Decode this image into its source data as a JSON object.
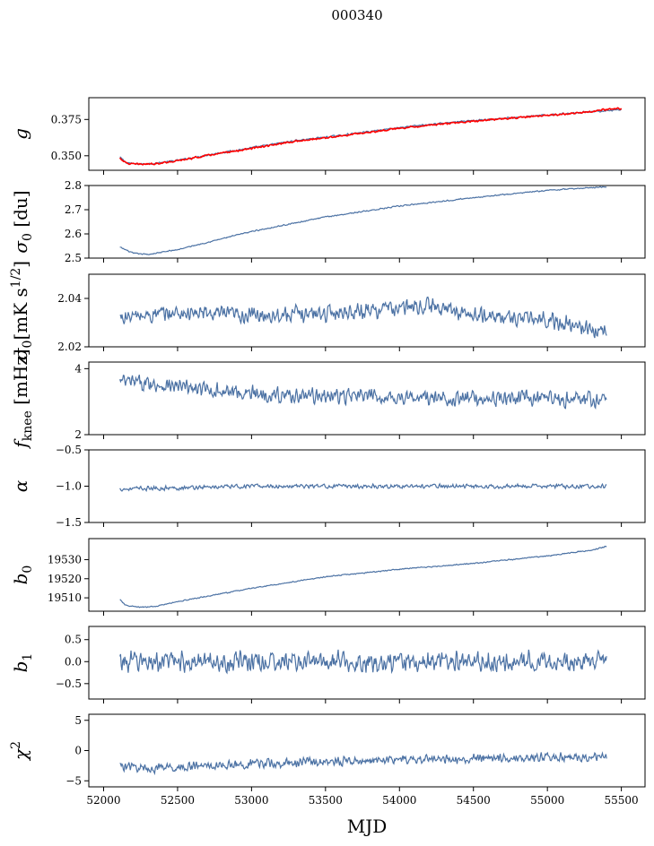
{
  "chart_data": {
    "title": "000340",
    "xlabel": "MJD",
    "xlim": [
      51900,
      55660
    ],
    "xticks": [
      52000,
      52500,
      53000,
      53500,
      54000,
      54500,
      55000,
      55500
    ],
    "xtick_labels": [
      "52000",
      "52500",
      "53000",
      "53500",
      "54000",
      "54500",
      "55000",
      "55500"
    ],
    "line_color": "#4c72a4",
    "red_color": "#ff0000",
    "panels": [
      {
        "type": "line",
        "ylabel": "g",
        "ylim": [
          0.34,
          0.39
        ],
        "yticks": [
          0.35,
          0.375
        ],
        "ytick_labels": [
          "0.350",
          "0.375"
        ],
        "noise": 0.0007,
        "series": [
          {
            "x": [
              52110,
              52150,
              52200,
              52260,
              52350,
              52500,
              52700,
              53000,
              53300,
              53600,
              54000,
              54300,
              54600,
              55000,
              55300,
              55400,
              55500
            ],
            "values": [
              0.349,
              0.3455,
              0.3445,
              0.3443,
              0.3448,
              0.3468,
              0.3505,
              0.3555,
              0.3605,
              0.364,
              0.3695,
              0.3725,
              0.375,
              0.378,
              0.3805,
              0.381,
              0.3815
            ]
          },
          {
            "x": [
              52110,
              52150,
              52200,
              52260,
              52350,
              52500,
              52700,
              53000,
              53300,
              53600,
              54000,
              54300,
              54600,
              55000,
              55300,
              55400,
              55500
            ],
            "values": [
              0.3485,
              0.345,
              0.3442,
              0.3442,
              0.3446,
              0.3465,
              0.3502,
              0.355,
              0.36,
              0.3636,
              0.369,
              0.372,
              0.3747,
              0.3778,
              0.3803,
              0.382,
              0.3825
            ]
          }
        ]
      },
      {
        "type": "line",
        "ylabel": "σ0 [du]",
        "ylim": [
          2.5,
          2.8
        ],
        "yticks": [
          2.5,
          2.6,
          2.7,
          2.8
        ],
        "ytick_labels": [
          "2.5",
          "2.6",
          "2.7",
          "2.8"
        ],
        "noise": 0.003,
        "series": [
          {
            "x": [
              52110,
              52200,
              52300,
              52500,
              53000,
              53500,
              54000,
              54500,
              55000,
              55400
            ],
            "values": [
              2.545,
              2.52,
              2.515,
              2.535,
              2.61,
              2.67,
              2.715,
              2.75,
              2.78,
              2.795
            ]
          }
        ]
      },
      {
        "type": "line",
        "ylabel": "σ0[mK s^1/2]",
        "ylim": [
          2.02,
          2.05
        ],
        "yticks": [
          2.02,
          2.04
        ],
        "ytick_labels": [
          "2.02",
          "2.04"
        ],
        "noise": 0.004,
        "series": [
          {
            "x": [
              52110,
              52500,
              53000,
              53500,
              54000,
              54200,
              54500,
              55000,
              55400
            ],
            "values": [
              2.032,
              2.034,
              2.033,
              2.034,
              2.036,
              2.037,
              2.033,
              2.031,
              2.026
            ]
          }
        ]
      },
      {
        "type": "line",
        "ylabel": "f_knee [mHz]",
        "ylim": [
          2,
          4.2
        ],
        "yticks": [
          2,
          4
        ],
        "ytick_labels": [
          "2",
          "4"
        ],
        "noise": 0.28,
        "series": [
          {
            "x": [
              52110,
              52300,
              52700,
              53200,
              53800,
              54300,
              54800,
              55400
            ],
            "values": [
              3.6,
              3.55,
              3.35,
              3.2,
              3.15,
              3.1,
              3.1,
              3.05
            ]
          }
        ]
      },
      {
        "type": "line",
        "ylabel": "α",
        "ylim": [
          -1.5,
          -0.5
        ],
        "yticks": [
          -1.5,
          -1.0,
          -0.5
        ],
        "ytick_labels": [
          "−1.5",
          "−1.0",
          "−0.5"
        ],
        "noise": 0.035,
        "series": [
          {
            "x": [
              52110,
              53000,
              54000,
              55400
            ],
            "values": [
              -1.04,
              -1.0,
              -1.0,
              -1.0
            ]
          }
        ]
      },
      {
        "type": "line",
        "ylabel": "b0",
        "ylim": [
          19503,
          19541
        ],
        "yticks": [
          19510,
          19520,
          19530
        ],
        "ytick_labels": [
          "19510",
          "19520",
          "19530"
        ],
        "noise": 0.35,
        "series": [
          {
            "x": [
              52110,
              52150,
              52250,
              52350,
              52500,
              53000,
              53500,
              54000,
              54500,
              55000,
              55300,
              55400
            ],
            "values": [
              19509,
              19506,
              19505,
              19505.5,
              19508,
              19515,
              19521,
              19525,
              19528,
              19532,
              19535,
              19537
            ]
          }
        ]
      },
      {
        "type": "line",
        "ylabel": "b1",
        "ylim": [
          -0.85,
          0.8
        ],
        "yticks": [
          -0.5,
          0.0,
          0.5
        ],
        "ytick_labels": [
          "−0.5",
          "0.0",
          "0.5"
        ],
        "noise": 0.28,
        "series": [
          {
            "x": [
              52110,
              53000,
              54000,
              55400
            ],
            "values": [
              0.0,
              0.0,
              0.0,
              0.0
            ]
          }
        ]
      },
      {
        "type": "line",
        "ylabel": "χ2",
        "ylim": [
          -6,
          6
        ],
        "yticks": [
          -5,
          0,
          5
        ],
        "ytick_labels": [
          "−5",
          "0",
          "5"
        ],
        "noise": 0.9,
        "series": [
          {
            "x": [
              52110,
              52300,
              52700,
              53300,
              54000,
              54700,
              55400
            ],
            "values": [
              -2.5,
              -3.0,
              -2.5,
              -2.0,
              -1.5,
              -1.2,
              -1.0
            ]
          }
        ]
      }
    ]
  }
}
